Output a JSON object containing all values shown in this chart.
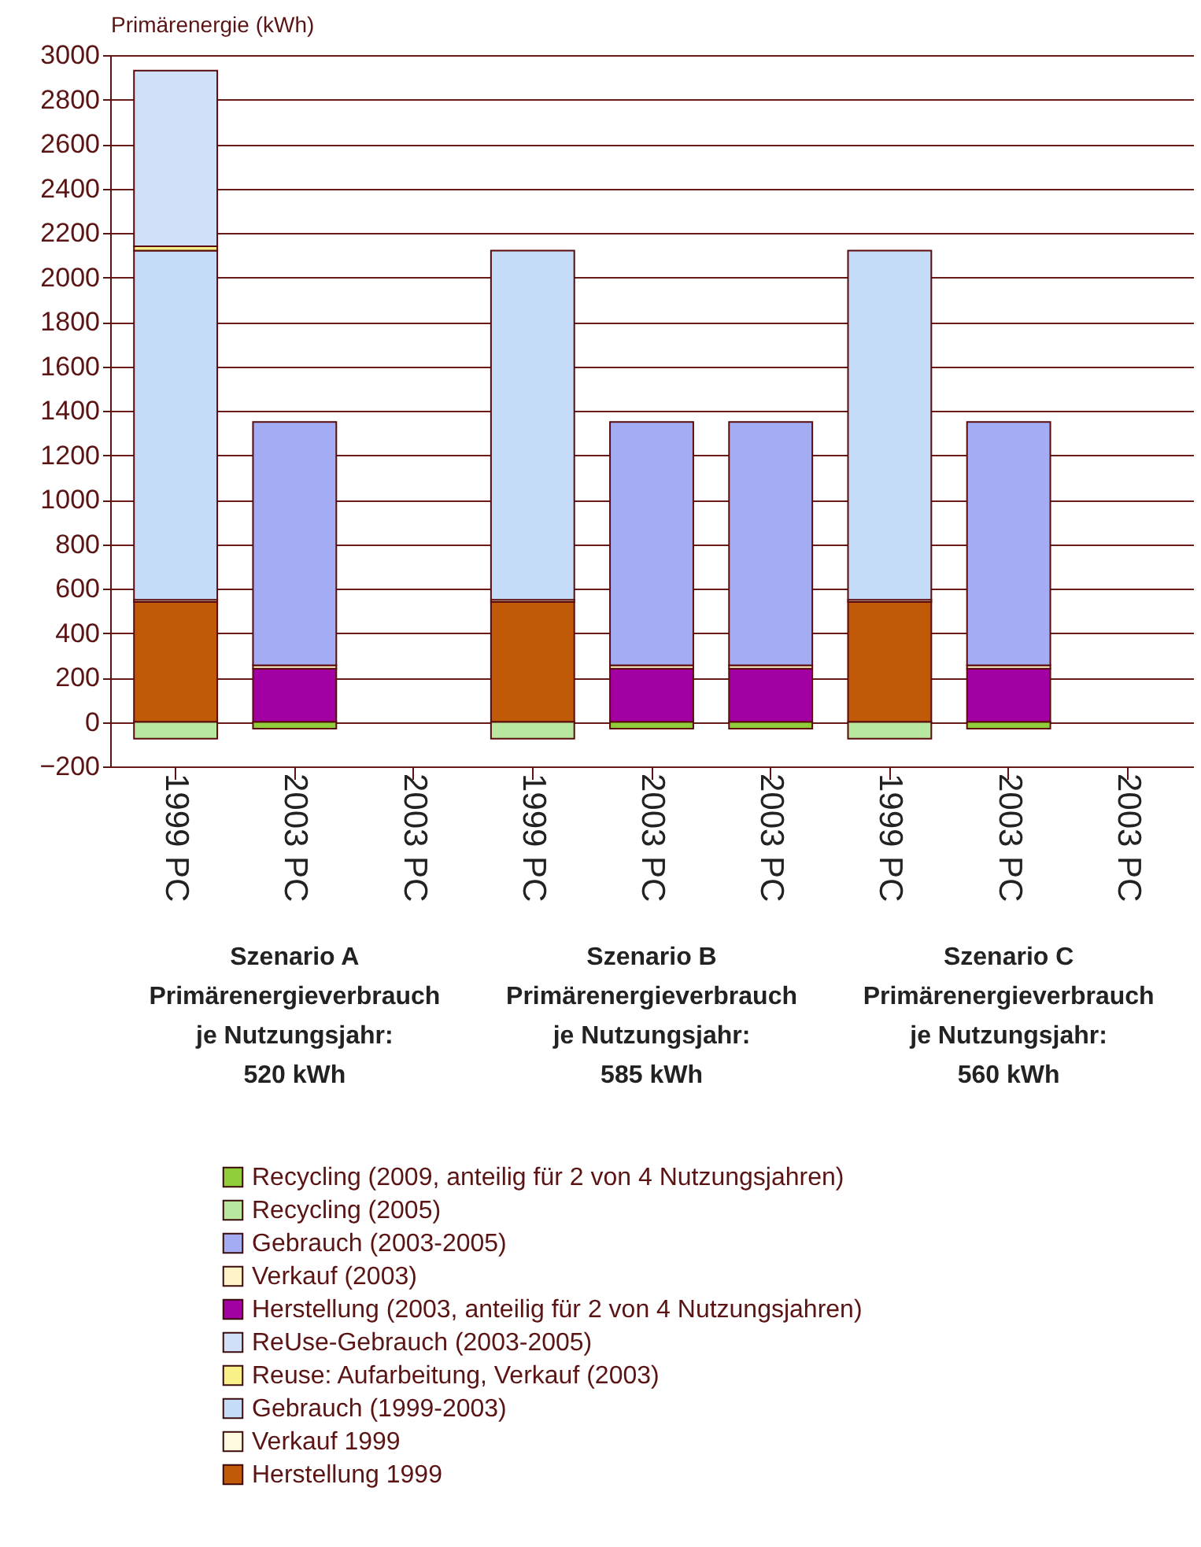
{
  "chart_data": {
    "type": "bar",
    "stacked": true,
    "ylabel": "Primärenergie (kWh)",
    "categories": [
      "1999 PC",
      "2003 PC",
      "2003 PC",
      "1999 PC",
      "2003 PC",
      "2003 PC",
      "1999 PC",
      "2003 PC",
      "2003 PC"
    ],
    "ylim": [
      -200,
      3000
    ],
    "yticks": [
      -200,
      0,
      200,
      400,
      600,
      800,
      1000,
      1200,
      1400,
      1600,
      1800,
      2000,
      2200,
      2400,
      2600,
      2800,
      3000
    ],
    "grid": "y",
    "legend": "bottom",
    "series": [
      {
        "name": "Herstellung 1999",
        "color": "#c05a08",
        "values": [
          540,
          null,
          null,
          540,
          null,
          null,
          540,
          null,
          null
        ]
      },
      {
        "name": "Verkauf 1999",
        "color": "#fffbe0",
        "values": [
          10,
          null,
          null,
          10,
          null,
          null,
          10,
          null,
          null
        ]
      },
      {
        "name": "Gebrauch (1999-2003)",
        "color": "#c4dcf8",
        "values": [
          1570,
          null,
          null,
          1570,
          null,
          null,
          1570,
          null,
          null
        ]
      },
      {
        "name": "Reuse: Aufarbeitung, Verkauf (2003)",
        "color": "#f8f088",
        "values": [
          20,
          null,
          null,
          null,
          null,
          null,
          null,
          null,
          null
        ]
      },
      {
        "name": "ReUse-Gebrauch (2003-2005)",
        "color": "#cfe0f8",
        "values": [
          790,
          null,
          null,
          null,
          null,
          null,
          null,
          null,
          null
        ]
      },
      {
        "name": "Herstellung (2003, anteilig für 2 von 4 Nutzungsjahren)",
        "color": "#a300a3",
        "values": [
          null,
          240,
          null,
          null,
          240,
          240,
          null,
          240,
          null
        ]
      },
      {
        "name": "Verkauf (2003)",
        "color": "#fff4c8",
        "values": [
          null,
          15,
          null,
          null,
          15,
          15,
          null,
          15,
          null
        ]
      },
      {
        "name": "Gebrauch (2003-2005)",
        "color": "#a4acf4",
        "values": [
          null,
          1095,
          null,
          null,
          1095,
          1095,
          null,
          1095,
          null
        ]
      },
      {
        "name": "Recycling (2005)",
        "color": "#b8e8a0",
        "values": [
          -75,
          null,
          null,
          -75,
          null,
          null,
          -75,
          null,
          null
        ]
      },
      {
        "name": "Recycling (2009, anteilig für 2 von 4 Nutzungsjahren)",
        "color": "#8fce3a",
        "values": [
          null,
          -30,
          null,
          null,
          -30,
          -30,
          null,
          -30,
          null
        ]
      }
    ],
    "annotations": [
      "Szenario A\nPrimärenergieverbrauch\nje Nutzungsjahr:\n520 kWh",
      "Szenario B\nPrimärenergieverbrauch\nje Nutzungsjahr:\n585 kWh",
      "Szenario C\nPrimärenergieverbrauch\nje Nutzungsjahr:\n560 kWh"
    ]
  }
}
